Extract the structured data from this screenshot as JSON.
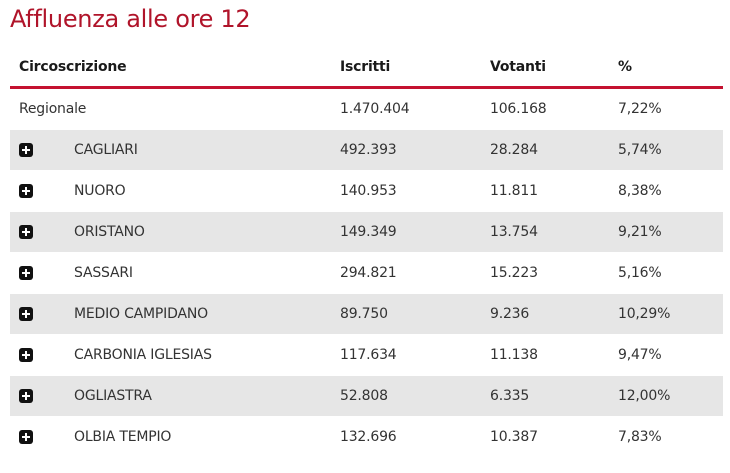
{
  "title": "Affluenza alle ore 12",
  "headers": {
    "circoscrizione": "Circoscrizione",
    "iscritti": "Iscritti",
    "votanti": "Votanti",
    "percent": "%"
  },
  "regional": {
    "name": "Regionale",
    "iscritti": "1.470.404",
    "votanti": "106.168",
    "percent": "7,22%"
  },
  "rows": [
    {
      "name": "CAGLIARI",
      "iscritti": "492.393",
      "votanti": "28.284",
      "percent": "5,74%"
    },
    {
      "name": "NUORO",
      "iscritti": "140.953",
      "votanti": "11.811",
      "percent": "8,38%"
    },
    {
      "name": "ORISTANO",
      "iscritti": "149.349",
      "votanti": "13.754",
      "percent": "9,21%"
    },
    {
      "name": "SASSARI",
      "iscritti": "294.821",
      "votanti": "15.223",
      "percent": "5,16%"
    },
    {
      "name": "MEDIO CAMPIDANO",
      "iscritti": "89.750",
      "votanti": "9.236",
      "percent": "10,29%"
    },
    {
      "name": "CARBONIA IGLESIAS",
      "iscritti": "117.634",
      "votanti": "11.138",
      "percent": "9,47%"
    },
    {
      "name": "OGLIASTRA",
      "iscritti": "52.808",
      "votanti": "6.335",
      "percent": "12,00%"
    },
    {
      "name": "OLBIA TEMPIO",
      "iscritti": "132.696",
      "votanti": "10.387",
      "percent": "7,83%"
    }
  ],
  "icons": {
    "expand": "plus-square-icon"
  },
  "colors": {
    "accent": "#c41230",
    "title": "#b0142a",
    "row_shade": "#e6e6e6"
  }
}
